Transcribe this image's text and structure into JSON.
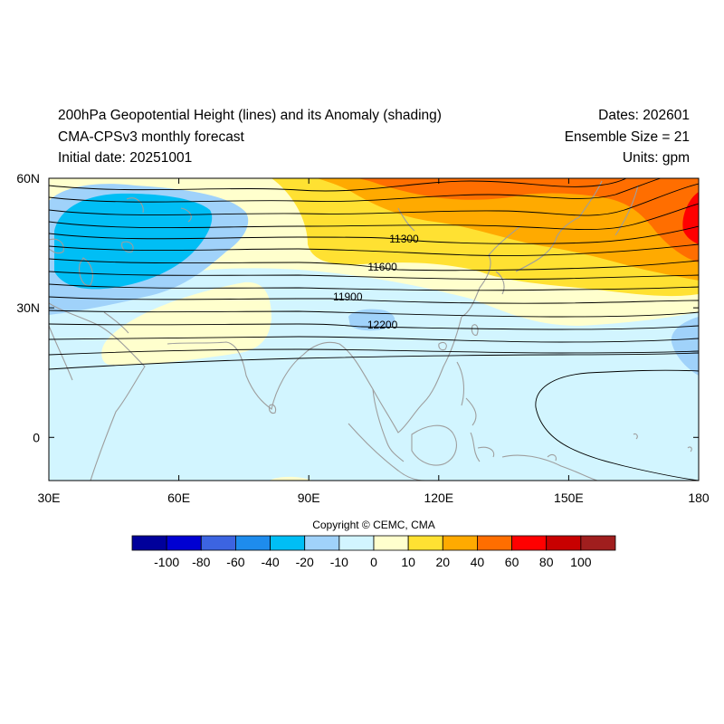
{
  "header": {
    "title": "200hPa Geopotential Height (lines) and its Anomaly (shading)",
    "model": "CMA-CPSv3 monthly forecast",
    "initial_date": "Initial date: 20251001",
    "dates": "Dates: 202601",
    "ensemble": "Ensemble Size = 21",
    "units": "Units: gpm"
  },
  "map": {
    "lon_range": [
      30,
      180
    ],
    "lat_range": [
      -10,
      60
    ],
    "lon_ticks": [
      {
        "value": 30,
        "label": "30E"
      },
      {
        "value": 60,
        "label": "60E"
      },
      {
        "value": 90,
        "label": "90E"
      },
      {
        "value": 120,
        "label": "120E"
      },
      {
        "value": 150,
        "label": "150E"
      },
      {
        "value": 180,
        "label": "180"
      }
    ],
    "lat_ticks": [
      {
        "value": 60,
        "label": "60N"
      },
      {
        "value": 30,
        "label": "30N"
      },
      {
        "value": 0,
        "label": "0"
      }
    ],
    "contour_labels": [
      {
        "value": "11300",
        "lon": 112,
        "lat": 46
      },
      {
        "value": "11600",
        "lon": 107,
        "lat": 39.5
      },
      {
        "value": "11900",
        "lon": 99,
        "lat": 32.5
      },
      {
        "value": "12200",
        "lon": 107,
        "lat": 26
      }
    ]
  },
  "copyright": "Copyright © CEMC, CMA",
  "colorbar": {
    "colors": [
      "#00009b",
      "#0000d2",
      "#3c64e1",
      "#1e8ced",
      "#00bef5",
      "#a0d2fa",
      "#d2f5ff",
      "#ffffcd",
      "#ffe132",
      "#ffaa00",
      "#ff6e00",
      "#ff0000",
      "#c80000",
      "#a01e1e"
    ],
    "labels": [
      "-100",
      "-80",
      "-60",
      "-40",
      "-20",
      "-10",
      "0",
      "10",
      "20",
      "40",
      "60",
      "80",
      "100"
    ]
  }
}
